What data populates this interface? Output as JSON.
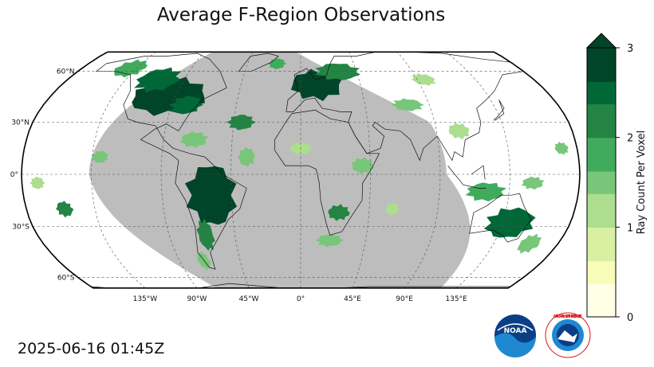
{
  "title": "Average F-Region Observations",
  "timestamp": "2025-06-16 01:45Z",
  "map": {
    "projection": "robinson",
    "lat_labels": [
      "60°N",
      "30°N",
      "0°",
      "30°S",
      "60°S"
    ],
    "lon_labels": [
      "135°W",
      "90°W",
      "45°W",
      "0°",
      "45°E",
      "90°E",
      "135°E"
    ],
    "night_shade_color": "#bdbdbd",
    "gridline_style": "dashed"
  },
  "colorbar": {
    "label": "Ray Count Per Voxel",
    "ticks": [
      "0",
      "1",
      "2",
      "3"
    ],
    "min": 0,
    "max": 3,
    "extend": "max",
    "colormap": "YlGn",
    "color_low": "#ffffe5",
    "color_high": "#004529"
  },
  "logos": {
    "noaa_text": "NOAA",
    "nws_text": "NATIONAL WEATHER SERVICE"
  }
}
